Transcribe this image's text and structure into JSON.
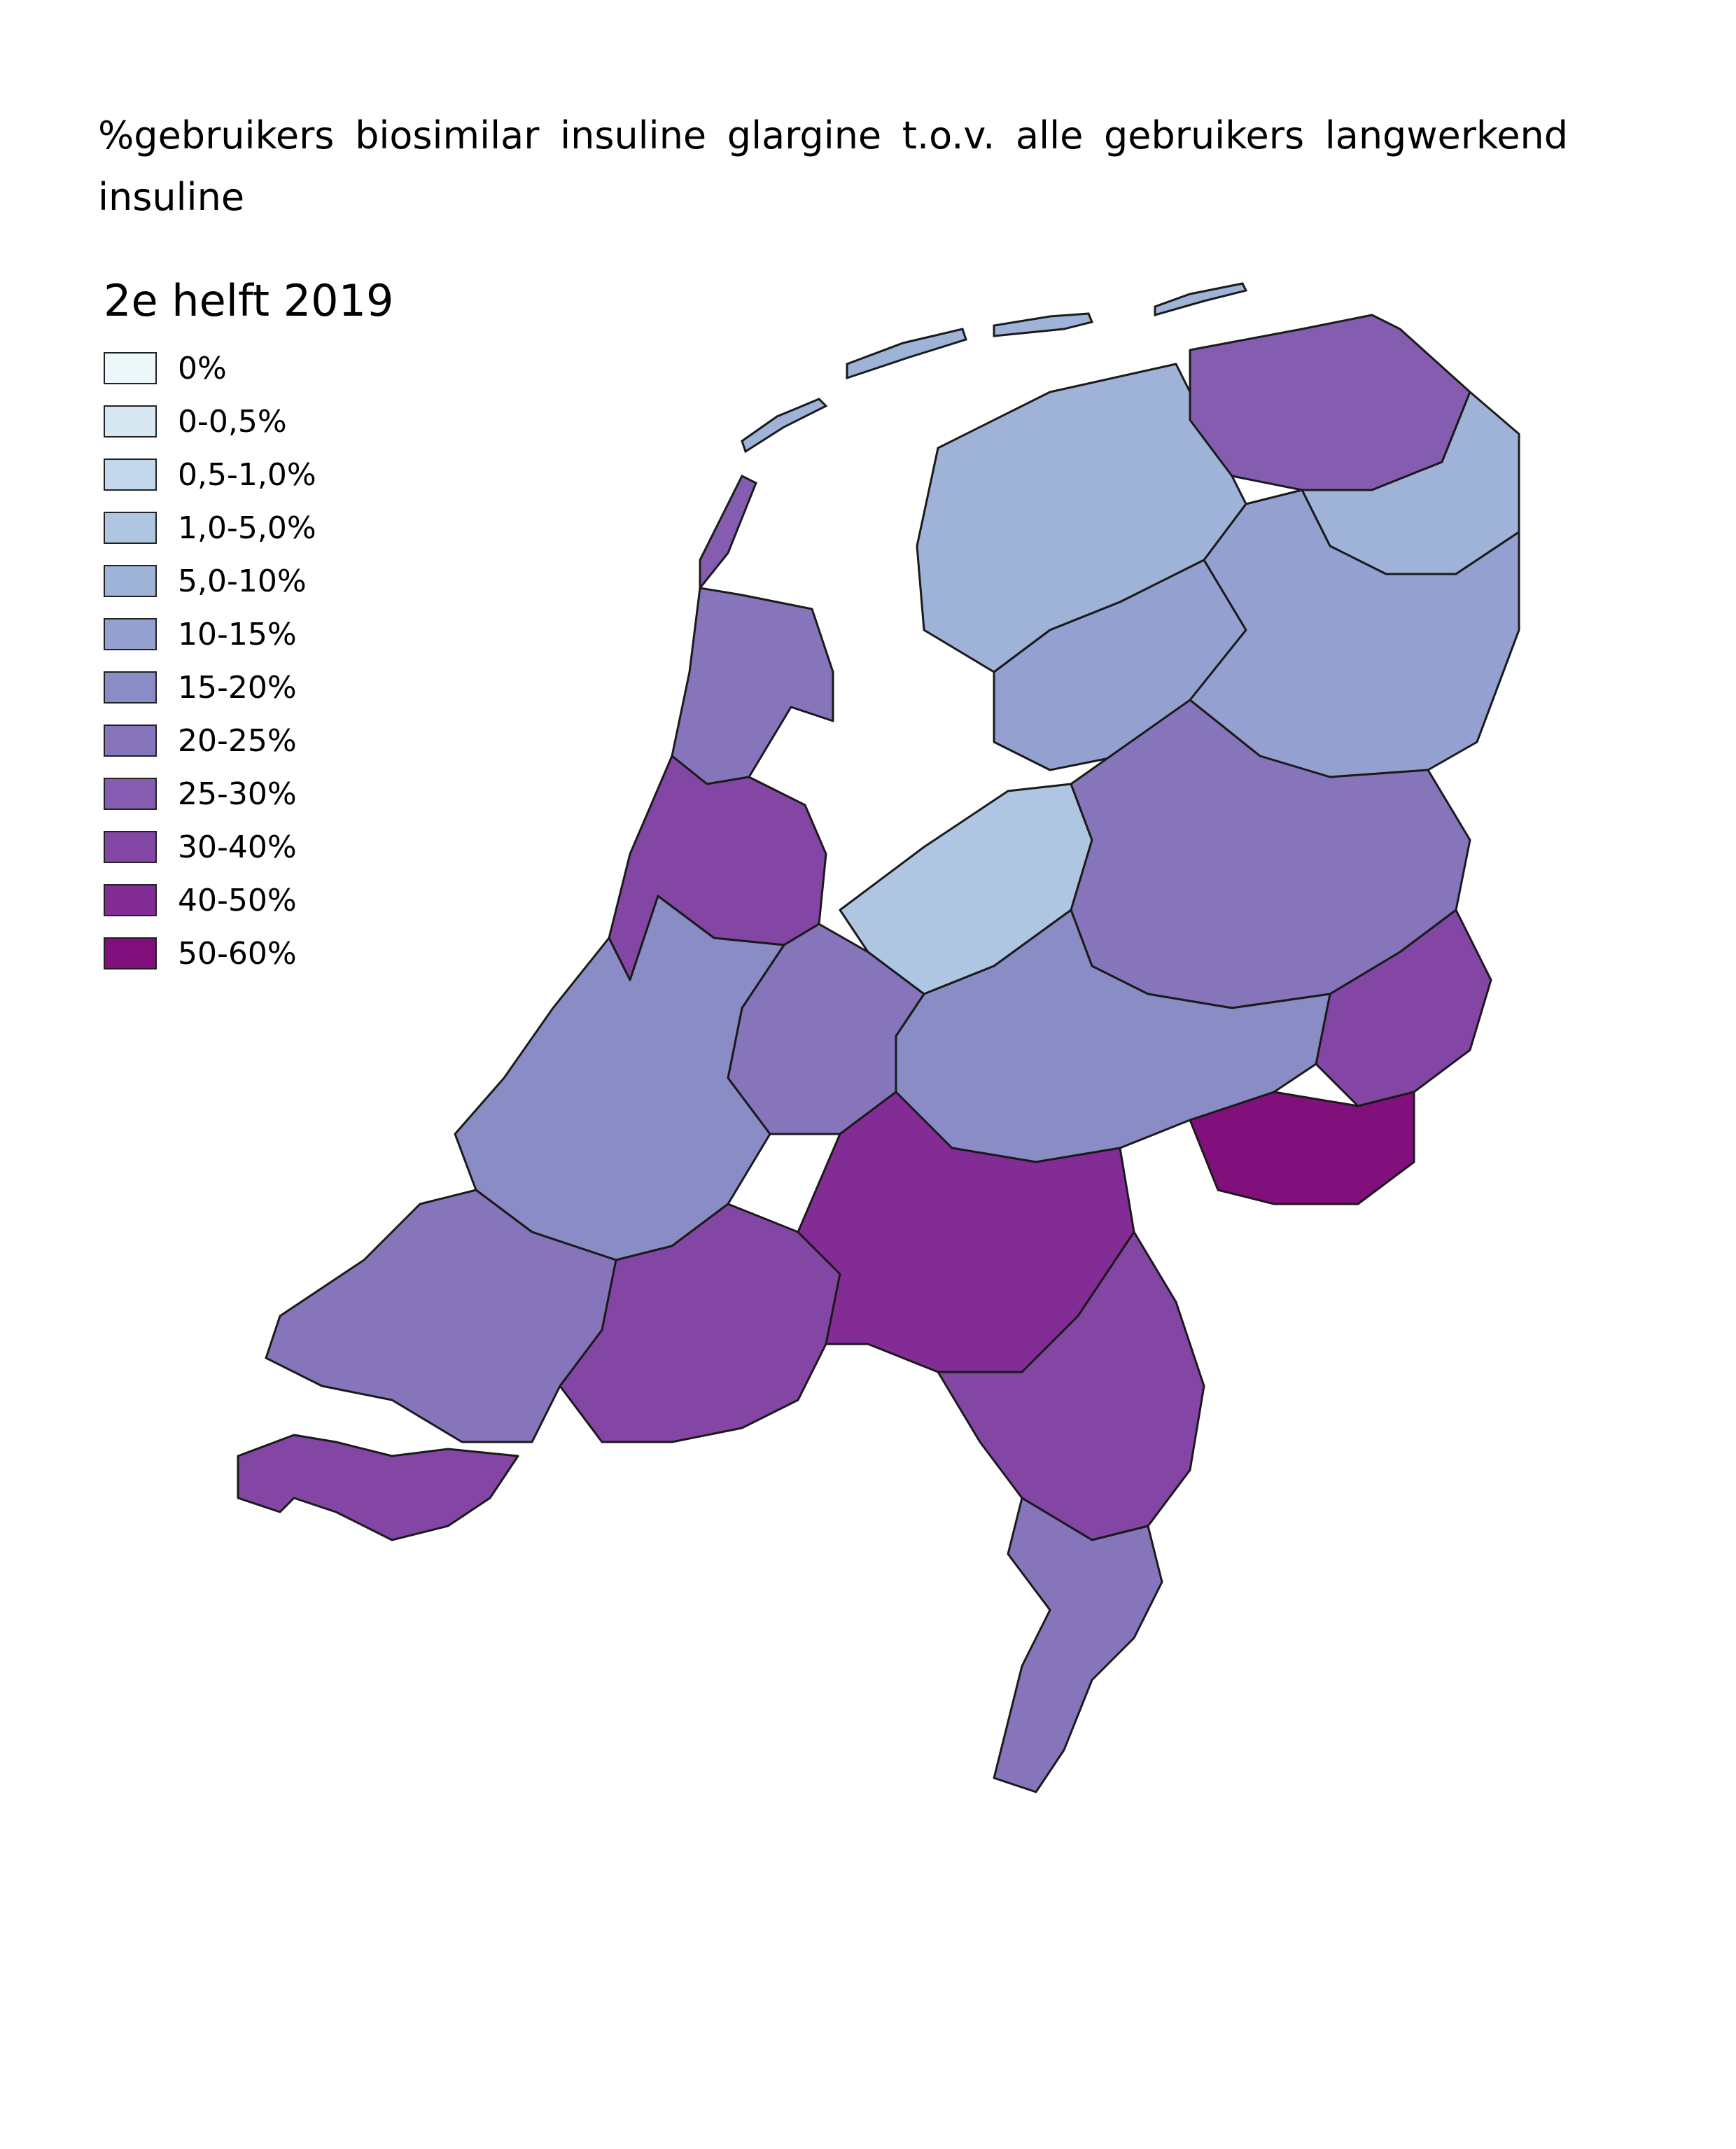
{
  "title": "%gebruikers biosimilar insuline glargine t.o.v. alle gebruikers langwerkend insuline",
  "legend": {
    "title": "2e helft 2019",
    "classes": [
      {
        "label": "0%",
        "color": "#edf8fb"
      },
      {
        "label": "0-0,5%",
        "color": "#d7e8f2"
      },
      {
        "label": "0,5-1,0%",
        "color": "#c3d8ea"
      },
      {
        "label": "1,0-5,0%",
        "color": "#afc6e2"
      },
      {
        "label": "5,0-10%",
        "color": "#9fb3d9"
      },
      {
        "label": "10-15%",
        "color": "#93a0d0"
      },
      {
        "label": "15-20%",
        "color": "#8a8cc6"
      },
      {
        "label": "20-25%",
        "color": "#8775bb"
      },
      {
        "label": "25-30%",
        "color": "#855db0"
      },
      {
        "label": "30-40%",
        "color": "#8446a4"
      },
      {
        "label": "40-50%",
        "color": "#832c96"
      },
      {
        "label": "50-60%",
        "color": "#810f7c"
      }
    ]
  },
  "map": {
    "regions": [
      {
        "area": "Groningen noordoost",
        "class": "20-25%"
      },
      {
        "area": "Groningen oost",
        "class": "30-40%"
      },
      {
        "area": "Friesland noord",
        "class": "1,0-5,0%"
      },
      {
        "area": "Friesland zuid",
        "class": "5,0-10%"
      },
      {
        "area": "Drenthe",
        "class": "10-15%"
      },
      {
        "area": "Noord-Holland noord",
        "class": "25-30%"
      },
      {
        "area": "Noord-Holland zuid",
        "class": "5,0-10%"
      },
      {
        "area": "Flevoland",
        "class": "10-15%"
      },
      {
        "area": "Overijssel",
        "class": "20-25%"
      },
      {
        "area": "Twente zuid",
        "class": "30-40%"
      },
      {
        "area": "Achterhoek",
        "class": "50-60%"
      },
      {
        "area": "Gelderland midden",
        "class": "15-20%"
      },
      {
        "area": "Zuid-Holland",
        "class": "20-25%"
      },
      {
        "area": "Utrecht",
        "class": "15-20%"
      },
      {
        "area": "Zeeland",
        "class": "20-25%"
      },
      {
        "area": "Zeeuws-Vlaanderen",
        "class": "30-40%"
      },
      {
        "area": "Noord-Brabant west",
        "class": "30-40%"
      },
      {
        "area": "Noord-Brabant oost",
        "class": "40-50%"
      },
      {
        "area": "Limburg noord",
        "class": "30-40%"
      },
      {
        "area": "Limburg zuid",
        "class": "20-25%"
      }
    ]
  }
}
